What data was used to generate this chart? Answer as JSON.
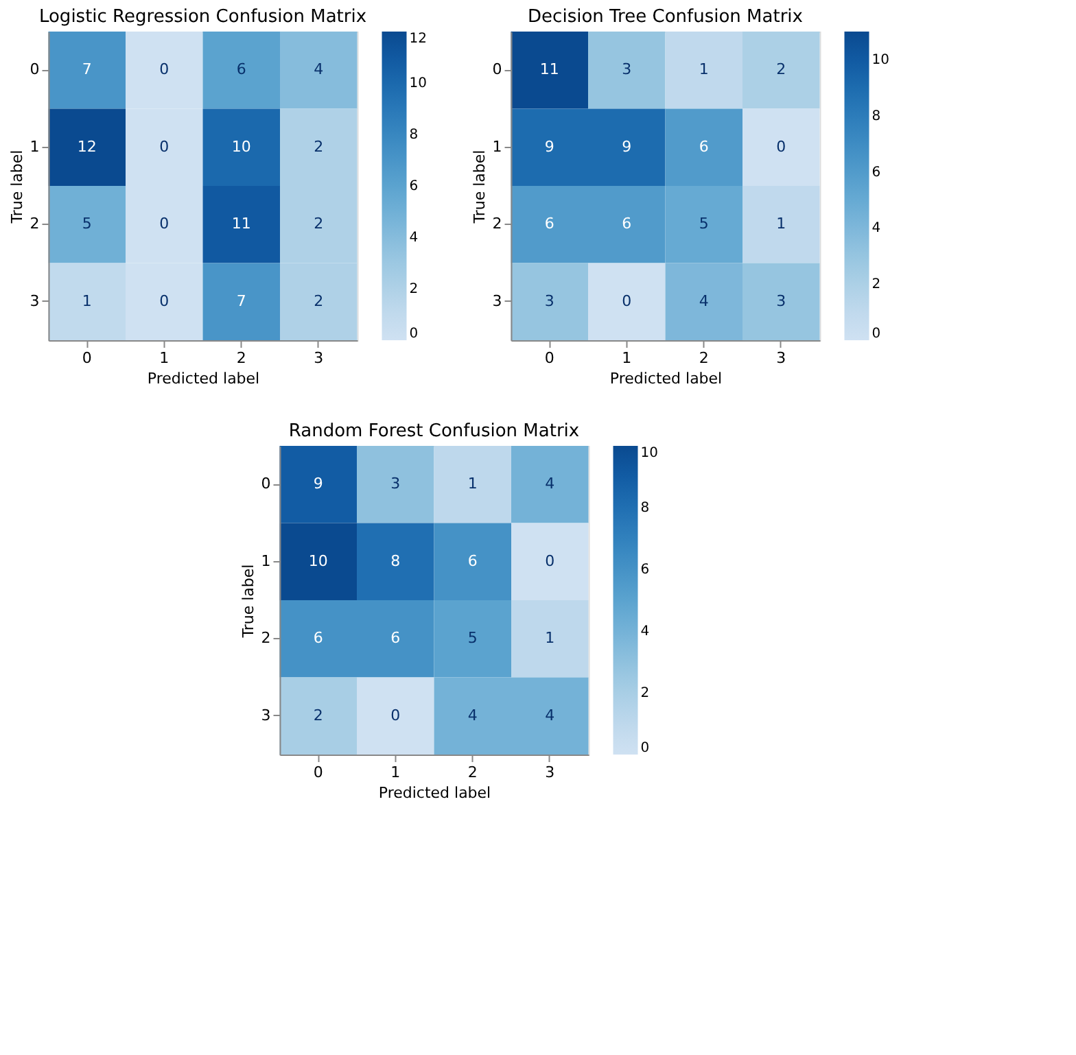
{
  "chart_data": [
    {
      "type": "heatmap",
      "title": "Logistic Regression Confusion Matrix",
      "xlabel": "Predicted label",
      "ylabel": "True label",
      "categories": [
        "0",
        "1",
        "2",
        "3"
      ],
      "y_categories": [
        "0",
        "1",
        "2",
        "3"
      ],
      "cells": [
        [
          7,
          0,
          6,
          4
        ],
        [
          12,
          0,
          10,
          2
        ],
        [
          5,
          0,
          11,
          2
        ],
        [
          1,
          0,
          7,
          2
        ]
      ],
      "clim": [
        0,
        12
      ],
      "cticks": [
        0,
        2,
        4,
        6,
        8,
        10,
        12
      ],
      "data_labels": true
    },
    {
      "type": "heatmap",
      "title": "Decision Tree Confusion Matrix",
      "xlabel": "Predicted label",
      "ylabel": "True label",
      "categories": [
        "0",
        "1",
        "2",
        "3"
      ],
      "y_categories": [
        "0",
        "1",
        "2",
        "3"
      ],
      "cells": [
        [
          11,
          3,
          1,
          2
        ],
        [
          9,
          9,
          6,
          0
        ],
        [
          6,
          6,
          5,
          1
        ],
        [
          3,
          0,
          4,
          3
        ]
      ],
      "clim": [
        0,
        11
      ],
      "cticks": [
        0,
        2,
        4,
        6,
        8,
        10
      ],
      "data_labels": true
    },
    {
      "type": "heatmap",
      "title": "Random Forest Confusion Matrix",
      "xlabel": "Predicted label",
      "ylabel": "True label",
      "categories": [
        "0",
        "1",
        "2",
        "3"
      ],
      "y_categories": [
        "0",
        "1",
        "2",
        "3"
      ],
      "cells": [
        [
          9,
          3,
          1,
          4
        ],
        [
          10,
          8,
          6,
          0
        ],
        [
          6,
          6,
          5,
          1
        ],
        [
          2,
          0,
          4,
          4
        ]
      ],
      "clim": [
        0,
        10
      ],
      "cticks": [
        0,
        2,
        4,
        6,
        8,
        10
      ],
      "data_labels": true
    }
  ]
}
